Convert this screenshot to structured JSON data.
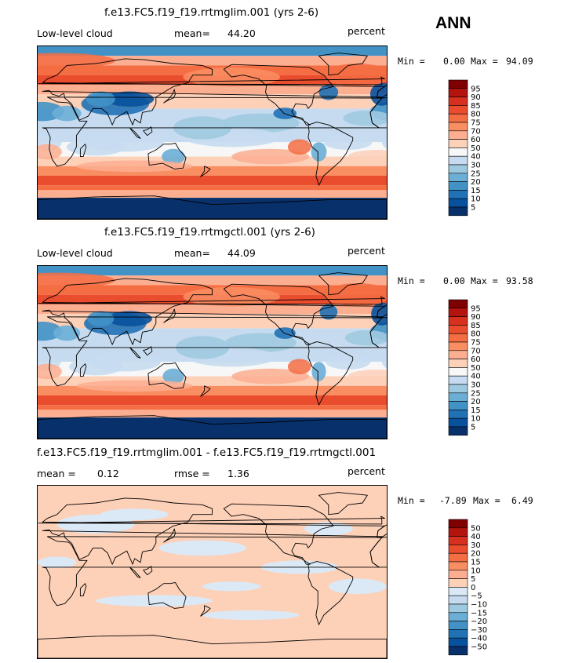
{
  "season_label": "ANN",
  "panels": [
    {
      "title": "f.e13.FC5.f19_f19.rrtmglim.001 (yrs 2-6)",
      "left_label": "Low-level cloud",
      "stat_label": "mean=",
      "stat_value": "44.20",
      "stat2_label": "",
      "stat2_value": "",
      "units": "percent",
      "min_label": "Min =",
      "min_value": "0.00",
      "max_label": "Max =",
      "max_value": "94.09",
      "legend_levels": [
        "95",
        "90",
        "85",
        "80",
        "75",
        "70",
        "60",
        "50",
        "40",
        "30",
        "25",
        "20",
        "15",
        "10",
        "5"
      ],
      "legend_colors": [
        "#7f0000",
        "#b3140e",
        "#d7301f",
        "#ea4c2e",
        "#f46d43",
        "#fa8e63",
        "#fcae91",
        "#fdd0b8",
        "#f7f7f7",
        "#c6dbef",
        "#9ecae1",
        "#6baed6",
        "#4292c6",
        "#2171b5",
        "#08519c",
        "#08306b"
      ]
    },
    {
      "title": "f.e13.FC5.f19_f19.rrtmgctl.001 (yrs 2-6)",
      "left_label": "Low-level cloud",
      "stat_label": "mean=",
      "stat_value": "44.09",
      "stat2_label": "",
      "stat2_value": "",
      "units": "percent",
      "min_label": "Min =",
      "min_value": "0.00",
      "max_label": "Max =",
      "max_value": "93.58",
      "legend_levels": [
        "95",
        "90",
        "85",
        "80",
        "75",
        "70",
        "60",
        "50",
        "40",
        "30",
        "25",
        "20",
        "15",
        "10",
        "5"
      ],
      "legend_colors": [
        "#7f0000",
        "#b3140e",
        "#d7301f",
        "#ea4c2e",
        "#f46d43",
        "#fa8e63",
        "#fcae91",
        "#fdd0b8",
        "#f7f7f7",
        "#c6dbef",
        "#9ecae1",
        "#6baed6",
        "#4292c6",
        "#2171b5",
        "#08519c",
        "#08306b"
      ]
    },
    {
      "title": "f.e13.FC5.f19_f19.rrtmglim.001 - f.e13.FC5.f19_f19.rrtmgctl.001",
      "left_label": "mean =",
      "left_value": "0.12",
      "stat_label": "rmse =",
      "stat_value": "1.36",
      "units": "percent",
      "min_label": "Min =",
      "min_value": "-7.89",
      "max_label": "Max =",
      "max_value": "6.49",
      "legend_levels": [
        "50",
        "40",
        "30",
        "20",
        "15",
        "10",
        "5",
        "0",
        "−5",
        "−10",
        "−15",
        "−20",
        "−30",
        "−40",
        "−50"
      ],
      "legend_colors": [
        "#7f0000",
        "#b3140e",
        "#d7301f",
        "#ea4c2e",
        "#f46d43",
        "#fa8e63",
        "#fcae91",
        "#fdd0b8",
        "#dbe9f6",
        "#c6dbef",
        "#9ecae1",
        "#6baed6",
        "#4292c6",
        "#2171b5",
        "#08519c",
        "#08306b"
      ]
    }
  ]
}
